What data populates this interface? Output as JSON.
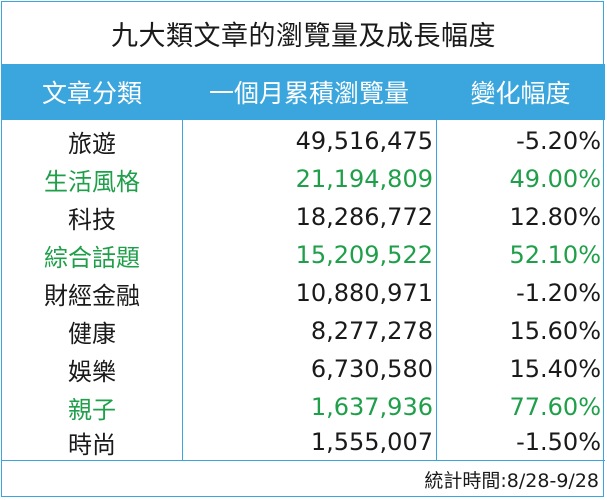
{
  "title": "九大類文章的瀏覽量及成長幅度",
  "headers": [
    "文章分類",
    "一個月累積瀏覽量",
    "變化幅度"
  ],
  "rows": [
    {
      "category": "旅遊",
      "views": "49,516,475",
      "change": "-5.20%",
      "highlight": false
    },
    {
      "category": "生活風格",
      "views": "21,194,809",
      "change": "49.00%",
      "highlight": true
    },
    {
      "category": "科技",
      "views": "18,286,772",
      "change": "12.80%",
      "highlight": false
    },
    {
      "category": "綜合話題",
      "views": "15,209,522",
      "change": "52.10%",
      "highlight": true
    },
    {
      "category": "財經金融",
      "views": "10,880,971",
      "change": "-1.20%",
      "highlight": false
    },
    {
      "category": "健康",
      "views": "8,277,278",
      "change": "15.60%",
      "highlight": false
    },
    {
      "category": "娛樂",
      "views": "6,730,580",
      "change": "15.40%",
      "highlight": false
    },
    {
      "category": "親子",
      "views": "1,637,936",
      "change": "77.60%",
      "highlight": true
    },
    {
      "category": "時尚",
      "views": "1,555,007",
      "change": "-1.50%",
      "highlight": false
    }
  ],
  "footer": "統計時間:8/28-9/28",
  "colors": {
    "header_bg": "#3aa6dd",
    "highlight_text": "#1f9f4a",
    "text": "#1a1a1a"
  }
}
